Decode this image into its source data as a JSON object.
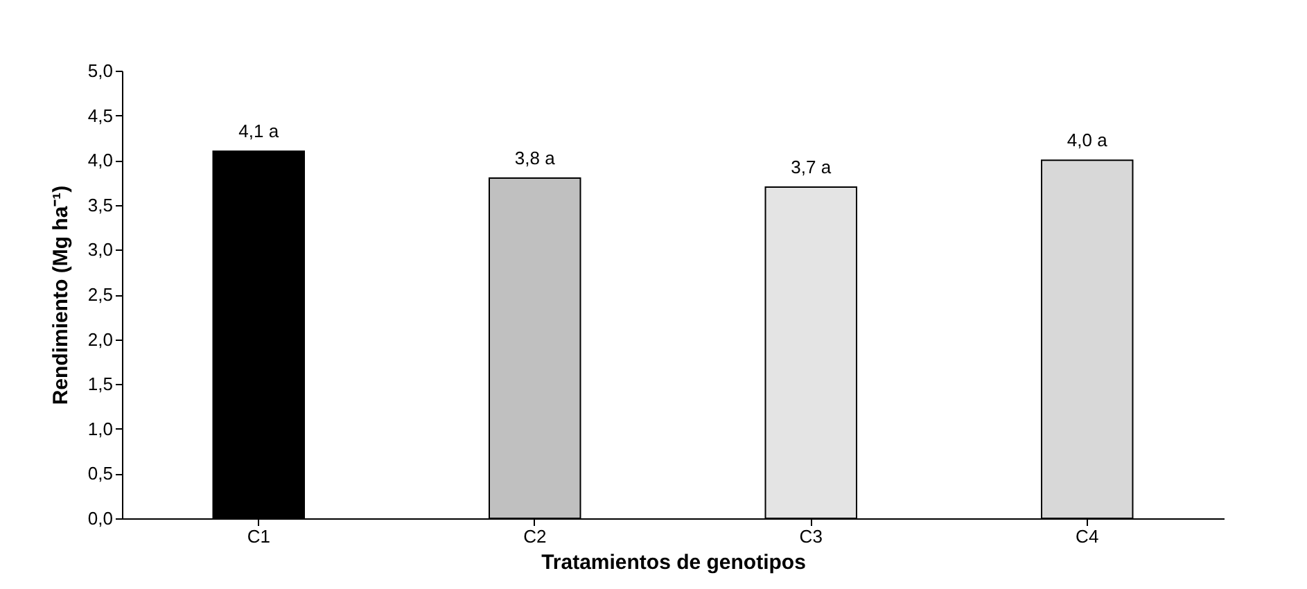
{
  "chart_data": {
    "type": "bar",
    "xlabel": "Tratamientos de genotipos",
    "ylabel": "Rendimiento (Mg ha⁻¹)",
    "categories": [
      "C1",
      "C2",
      "C3",
      "C4"
    ],
    "values": [
      4.1,
      3.8,
      3.7,
      4.0
    ],
    "colors": [
      "#000000",
      "#c0c0c0",
      "#e4e4e4",
      "#d8d8d8"
    ],
    "value_labels": [
      "4,1 a",
      "3,8 a",
      "3,7 a",
      "4,0 a"
    ],
    "ylim": [
      0,
      5
    ],
    "yticks": [
      {
        "value": 0,
        "label": "0,0"
      },
      {
        "value": 0.5,
        "label": "0,5"
      },
      {
        "value": 1,
        "label": "1,0"
      },
      {
        "value": 1.5,
        "label": "1,5"
      },
      {
        "value": 2,
        "label": "2,0"
      },
      {
        "value": 2.5,
        "label": "2,5"
      },
      {
        "value": 3,
        "label": "3,0"
      },
      {
        "value": 3.5,
        "label": "3,5"
      },
      {
        "value": 4,
        "label": "4,0"
      },
      {
        "value": 4.5,
        "label": "4,5"
      },
      {
        "value": 5,
        "label": "5,0"
      }
    ]
  }
}
